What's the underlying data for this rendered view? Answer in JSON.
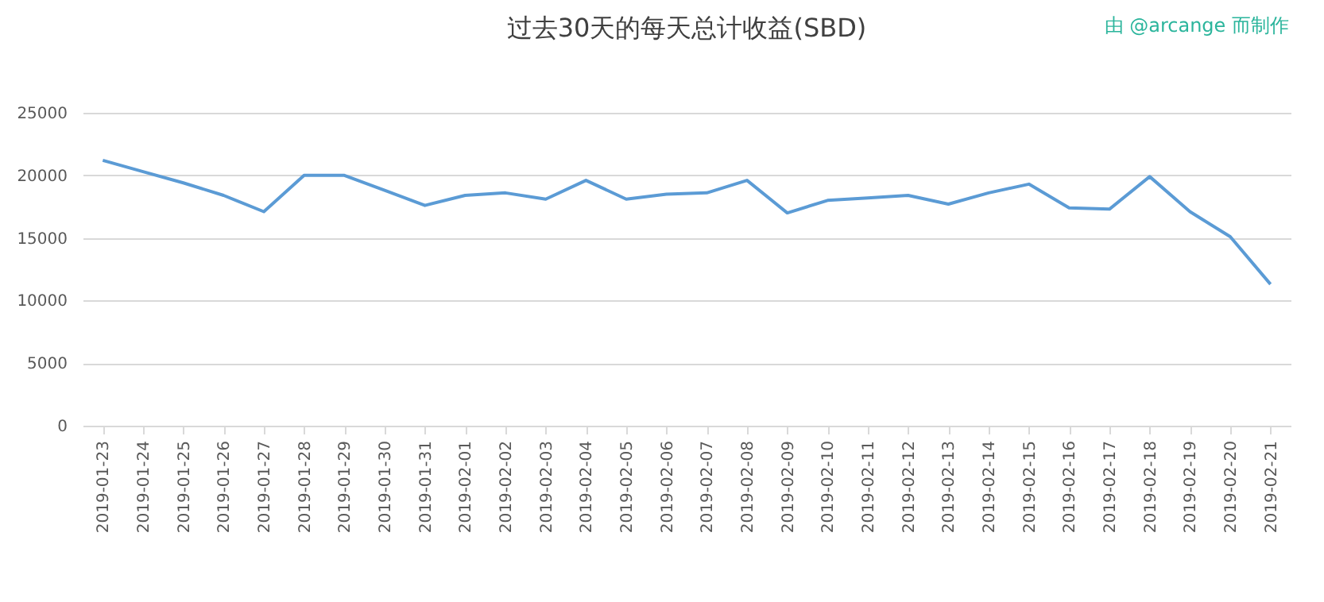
{
  "chart_data": {
    "type": "line",
    "title": "过去30天的每天总计收益(SBD)",
    "annotations": [
      "由 @arcange 而制作"
    ],
    "categories": [
      "2019-01-23",
      "2019-01-24",
      "2019-01-25",
      "2019-01-26",
      "2019-01-27",
      "2019-01-28",
      "2019-01-29",
      "2019-01-30",
      "2019-01-31",
      "2019-02-01",
      "2019-02-02",
      "2019-02-03",
      "2019-02-04",
      "2019-02-05",
      "2019-02-06",
      "2019-02-07",
      "2019-02-08",
      "2019-02-09",
      "2019-02-10",
      "2019-02-11",
      "2019-02-12",
      "2019-02-13",
      "2019-02-14",
      "2019-02-15",
      "2019-02-16",
      "2019-02-17",
      "2019-02-18",
      "2019-02-19",
      "2019-02-20",
      "2019-02-21"
    ],
    "series": [
      {
        "color": "#5b9bd5",
        "values": [
          21200,
          20300,
          19400,
          18400,
          17100,
          20000,
          20000,
          18800,
          17600,
          18400,
          18600,
          18100,
          19600,
          18100,
          18500,
          18600,
          19600,
          17000,
          18000,
          18200,
          18400,
          17700,
          18600,
          19300,
          17400,
          17300,
          19900,
          17100,
          15100,
          11300
        ]
      }
    ],
    "ylim": [
      0,
      25000
    ],
    "yticks": [
      0,
      5000,
      10000,
      15000,
      20000,
      25000
    ],
    "grid": "y",
    "line_style": "solid"
  }
}
